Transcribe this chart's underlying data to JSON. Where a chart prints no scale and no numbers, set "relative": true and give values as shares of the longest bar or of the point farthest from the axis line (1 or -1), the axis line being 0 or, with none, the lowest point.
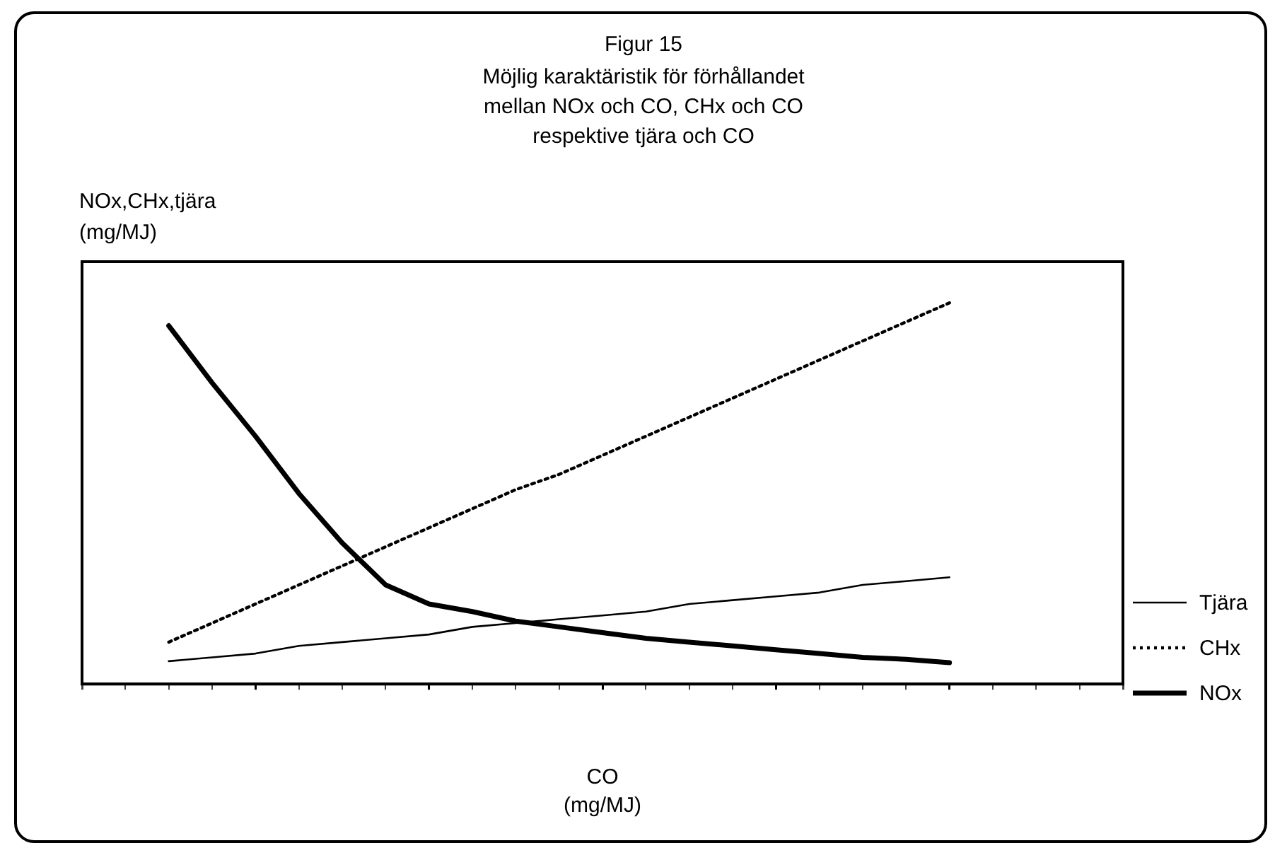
{
  "chart_data": {
    "type": "line",
    "title": "Figur 15",
    "subtitle": "Möjlig karaktäristik för förhållandet\nmellan NOx och CO, CHx och CO\nrespektive tjära och CO",
    "xlabel": "CO\n(mg/MJ)",
    "ylabel": "NOx,CHx,tjära\n(mg/MJ)",
    "relative": true,
    "legend": "right",
    "grid": false,
    "marker": "none",
    "categories": [
      null,
      null,
      null,
      null,
      null,
      null,
      null,
      null,
      null,
      null,
      null,
      null,
      null,
      null,
      null,
      null,
      null,
      null,
      null,
      null,
      null,
      null,
      null,
      null,
      null
    ],
    "series": [
      {
        "name": "Tjära",
        "color": "#000000",
        "line_style": "solid",
        "values": [
          null,
          null,
          0.06,
          0.07,
          0.08,
          0.1,
          0.11,
          0.12,
          0.13,
          0.15,
          0.16,
          0.17,
          0.18,
          0.19,
          0.21,
          0.22,
          0.23,
          0.24,
          0.26,
          0.27,
          0.28,
          null,
          null,
          null,
          null
        ]
      },
      {
        "name": "CHx",
        "color": "#000000",
        "line_style": "dotted",
        "values": [
          null,
          null,
          0.11,
          0.16,
          0.21,
          0.26,
          0.31,
          0.36,
          0.41,
          0.46,
          0.51,
          0.55,
          0.6,
          0.65,
          0.7,
          0.75,
          0.8,
          0.85,
          0.9,
          0.95,
          1.0,
          null,
          null,
          null,
          null
        ]
      },
      {
        "name": "NOx",
        "color": "#000000",
        "line_style": "solid",
        "values": [
          null,
          null,
          0.94,
          0.79,
          0.65,
          0.5,
          0.37,
          0.26,
          0.21,
          0.19,
          0.165,
          0.15,
          0.135,
          0.12,
          0.11,
          0.1,
          0.09,
          0.08,
          0.07,
          0.065,
          0.056,
          null,
          null,
          null,
          null
        ]
      }
    ]
  }
}
